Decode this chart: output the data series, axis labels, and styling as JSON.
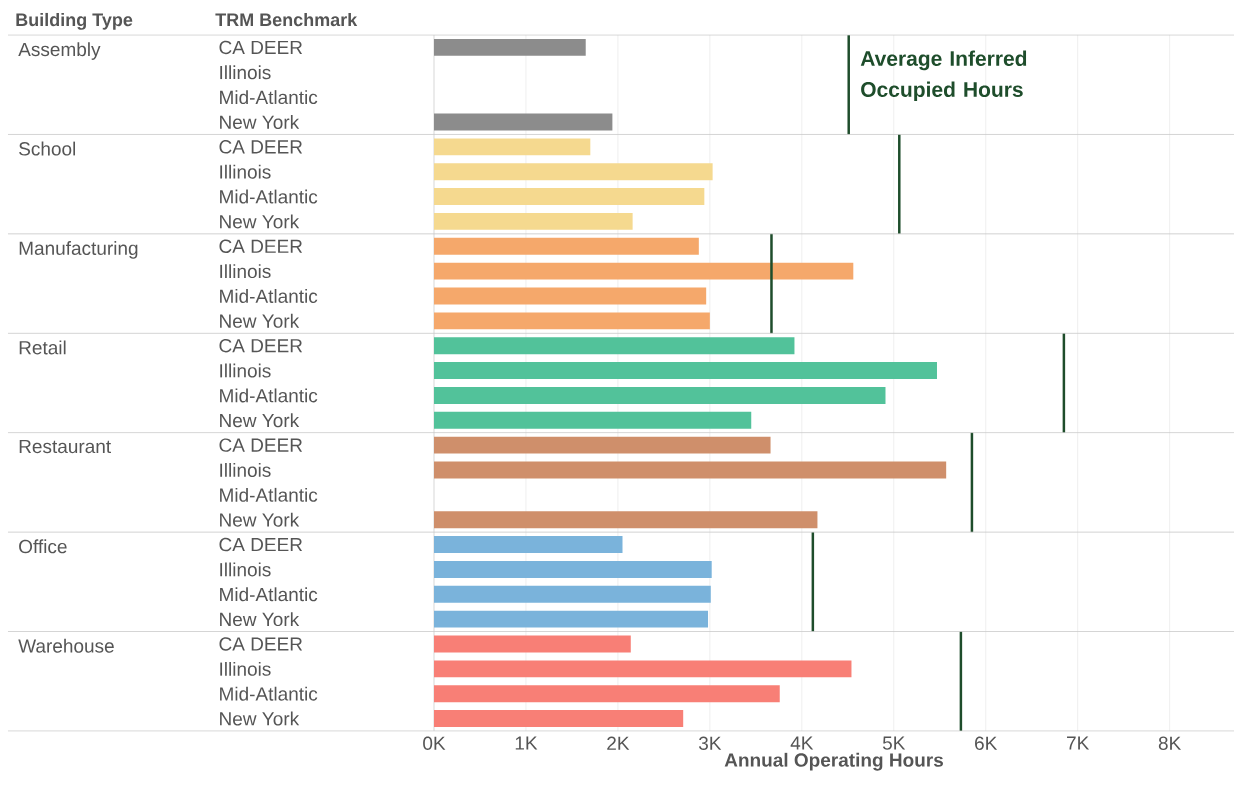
{
  "chart_data": [
    {
      "type": "bar",
      "orientation": "horizontal",
      "ylabel": "Assembly",
      "annotations": [
        "Building Type",
        "TRM Benchmark"
      ],
      "categories": [
        "CA DEER",
        "Illinois",
        "Mid-Atlantic",
        "New York"
      ],
      "values": [
        1650,
        null,
        null,
        1940
      ],
      "color": "#8c8c8c",
      "xlim": [
        0,
        8700
      ],
      "xticks": [
        0,
        1000,
        2000,
        3000,
        4000,
        5000,
        6000,
        7000,
        8000
      ],
      "grid": "x",
      "tick_labels": "y",
      "ref_lines": [
        {
          "axis": "x",
          "value": 4510,
          "label": "Average Inferred Occupied Hours",
          "color": "#1e4d2b"
        }
      ]
    },
    {
      "type": "bar",
      "orientation": "horizontal",
      "ylabel": "School",
      "categories": [
        "CA DEER",
        "Illinois",
        "Mid-Atlantic",
        "New York"
      ],
      "values": [
        1700,
        3030,
        2940,
        2160
      ],
      "color": "#f5d98f",
      "xlim": [
        0,
        8700
      ],
      "xticks": [
        0,
        1000,
        2000,
        3000,
        4000,
        5000,
        6000,
        7000,
        8000
      ],
      "grid": "x",
      "tick_labels": "y",
      "ref_lines": [
        {
          "axis": "x",
          "value": 5060,
          "color": "#1e4d2b"
        }
      ]
    },
    {
      "type": "bar",
      "orientation": "horizontal",
      "ylabel": "Manufacturing",
      "categories": [
        "CA DEER",
        "Illinois",
        "Mid-Atlantic",
        "New York"
      ],
      "values": [
        2880,
        4560,
        2960,
        3000
      ],
      "color": "#f5a86b",
      "xlim": [
        0,
        8700
      ],
      "xticks": [
        0,
        1000,
        2000,
        3000,
        4000,
        5000,
        6000,
        7000,
        8000
      ],
      "grid": "x",
      "tick_labels": "y",
      "ref_lines": [
        {
          "axis": "x",
          "value": 3670,
          "color": "#1e4d2b"
        }
      ]
    },
    {
      "type": "bar",
      "orientation": "horizontal",
      "ylabel": "Retail",
      "categories": [
        "CA DEER",
        "Illinois",
        "Mid-Atlantic",
        "New York"
      ],
      "values": [
        3920,
        5470,
        4910,
        3450
      ],
      "color": "#52c29a",
      "xlim": [
        0,
        8700
      ],
      "xticks": [
        0,
        1000,
        2000,
        3000,
        4000,
        5000,
        6000,
        7000,
        8000
      ],
      "grid": "x",
      "tick_labels": "y",
      "ref_lines": [
        {
          "axis": "x",
          "value": 6850,
          "color": "#1e4d2b"
        }
      ]
    },
    {
      "type": "bar",
      "orientation": "horizontal",
      "ylabel": "Restaurant",
      "categories": [
        "CA DEER",
        "Illinois",
        "Mid-Atlantic",
        "New York"
      ],
      "values": [
        3660,
        5570,
        null,
        4170
      ],
      "color": "#cf8f6b",
      "xlim": [
        0,
        8700
      ],
      "xticks": [
        0,
        1000,
        2000,
        3000,
        4000,
        5000,
        6000,
        7000,
        8000
      ],
      "grid": "x",
      "tick_labels": "y",
      "ref_lines": [
        {
          "axis": "x",
          "value": 5850,
          "color": "#1e4d2b"
        }
      ]
    },
    {
      "type": "bar",
      "orientation": "horizontal",
      "ylabel": "Office",
      "categories": [
        "CA DEER",
        "Illinois",
        "Mid-Atlantic",
        "New York"
      ],
      "values": [
        2050,
        3020,
        3010,
        2980
      ],
      "color": "#7ab3db",
      "xlim": [
        0,
        8700
      ],
      "xticks": [
        0,
        1000,
        2000,
        3000,
        4000,
        5000,
        6000,
        7000,
        8000
      ],
      "grid": "x",
      "tick_labels": "y",
      "ref_lines": [
        {
          "axis": "x",
          "value": 4120,
          "color": "#1e4d2b"
        }
      ]
    },
    {
      "type": "bar",
      "orientation": "horizontal",
      "ylabel": "Warehouse",
      "xlabel": "Annual Operating Hours",
      "categories": [
        "CA DEER",
        "Illinois",
        "Mid-Atlantic",
        "New York"
      ],
      "values": [
        2140,
        4540,
        3760,
        2710
      ],
      "color": "#f87f76",
      "xlim": [
        0,
        8700
      ],
      "xticks": [
        {
          "value": 0,
          "label": "0K"
        },
        {
          "value": 1000,
          "label": "1K"
        },
        {
          "value": 2000,
          "label": "2K"
        },
        {
          "value": 3000,
          "label": "3K"
        },
        {
          "value": 4000,
          "label": "4K"
        },
        {
          "value": 5000,
          "label": "5K"
        },
        {
          "value": 6000,
          "label": "6K"
        },
        {
          "value": 7000,
          "label": "7K"
        },
        {
          "value": 8000,
          "label": "8K"
        }
      ],
      "grid": "x",
      "ref_lines": [
        {
          "axis": "x",
          "value": 5730,
          "color": "#1e4d2b"
        }
      ]
    }
  ]
}
